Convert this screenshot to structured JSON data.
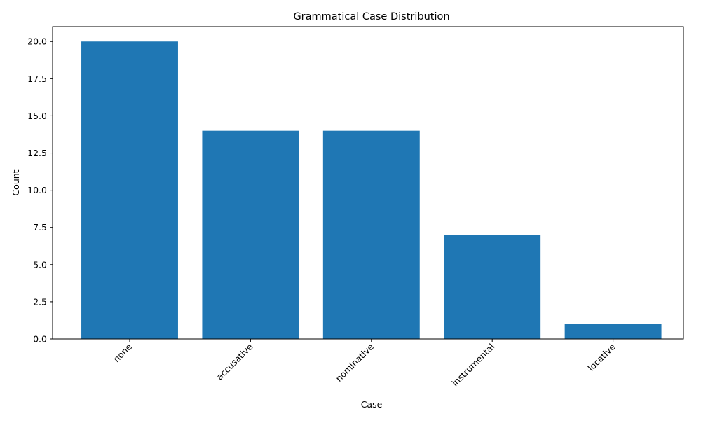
{
  "chart_data": {
    "type": "bar",
    "title": "Grammatical Case Distribution",
    "xlabel": "Case",
    "ylabel": "Count",
    "categories": [
      "none",
      "accusative",
      "nominative",
      "instrumental",
      "locative"
    ],
    "values": [
      20,
      14,
      14,
      7,
      1
    ],
    "ylim": [
      0,
      21
    ],
    "yticks": [
      0.0,
      2.5,
      5.0,
      7.5,
      10.0,
      12.5,
      15.0,
      17.5,
      20.0
    ],
    "ytick_labels": [
      "0.0",
      "2.5",
      "5.0",
      "7.5",
      "10.0",
      "12.5",
      "15.0",
      "17.5",
      "20.0"
    ],
    "xtick_rotation": 45,
    "grid": false,
    "legend": "none",
    "bar_color": "#1f77b4"
  }
}
